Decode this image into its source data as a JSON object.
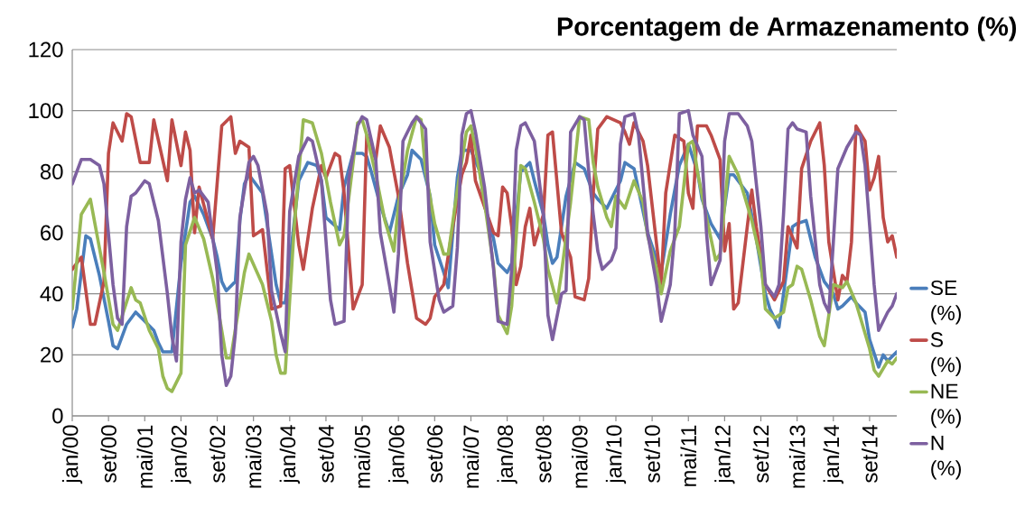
{
  "chart_data": {
    "type": "line",
    "title": "Porcentagem de Armazenamento (%)",
    "xlim": [
      "2000-01",
      "2015-03"
    ],
    "xticks": [
      {
        "value": "2000-01",
        "label": "jan/00"
      },
      {
        "value": "2000-09",
        "label": "set/00"
      },
      {
        "value": "2001-05",
        "label": "mai/01"
      },
      {
        "value": "2002-01",
        "label": "jan/02"
      },
      {
        "value": "2002-09",
        "label": "set/02"
      },
      {
        "value": "2003-05",
        "label": "mai/03"
      },
      {
        "value": "2004-01",
        "label": "jan/04"
      },
      {
        "value": "2004-09",
        "label": "set/04"
      },
      {
        "value": "2005-05",
        "label": "mai/05"
      },
      {
        "value": "2006-01",
        "label": "jan/06"
      },
      {
        "value": "2006-09",
        "label": "set/06"
      },
      {
        "value": "2007-05",
        "label": "mai/07"
      },
      {
        "value": "2008-01",
        "label": "jan/08"
      },
      {
        "value": "2008-09",
        "label": "set/08"
      },
      {
        "value": "2009-05",
        "label": "mai/09"
      },
      {
        "value": "2010-01",
        "label": "jan/10"
      },
      {
        "value": "2010-09",
        "label": "set/10"
      },
      {
        "value": "2011-05",
        "label": "mai/11"
      },
      {
        "value": "2012-01",
        "label": "jan/12"
      },
      {
        "value": "2012-09",
        "label": "set/12"
      },
      {
        "value": "2013-05",
        "label": "mai/13"
      },
      {
        "value": "2014-01",
        "label": "jan/14"
      },
      {
        "value": "2014-09",
        "label": "set/14"
      }
    ],
    "ylim": [
      0,
      120
    ],
    "yticks": [
      0,
      20,
      40,
      60,
      80,
      100,
      120
    ],
    "grid": "y",
    "legend": "right",
    "series": [
      {
        "name": "SE (%)",
        "color": "#4a7ebb",
        "x": [
          "2000-01",
          "2000-02",
          "2000-04",
          "2000-05",
          "2000-07",
          "2000-09",
          "2000-10",
          "2000-11",
          "2001-01",
          "2001-03",
          "2001-05",
          "2001-07",
          "2001-08",
          "2001-09",
          "2001-11",
          "2002-01",
          "2002-03",
          "2002-04",
          "2002-06",
          "2002-08",
          "2002-09",
          "2002-10",
          "2002-11",
          "2003-01",
          "2003-02",
          "2003-03",
          "2003-04",
          "2003-07",
          "2003-08",
          "2003-10",
          "2003-11",
          "2003-12",
          "2004-03",
          "2004-05",
          "2004-07",
          "2004-08",
          "2004-09",
          "2004-12",
          "2005-01",
          "2005-03",
          "2005-05",
          "2005-06",
          "2005-07",
          "2005-09",
          "2005-11",
          "2006-01",
          "2006-03",
          "2006-04",
          "2006-06",
          "2006-08",
          "2006-09",
          "2006-11",
          "2006-12",
          "2007-02",
          "2007-03",
          "2007-05",
          "2007-07",
          "2007-08",
          "2007-10",
          "2007-11",
          "2008-01",
          "2008-02",
          "2008-04",
          "2008-06",
          "2008-07",
          "2008-09",
          "2008-10",
          "2008-11",
          "2008-12",
          "2009-02",
          "2009-04",
          "2009-06",
          "2009-08",
          "2009-09",
          "2009-11",
          "2009-12",
          "2010-02",
          "2010-03",
          "2010-05",
          "2010-06",
          "2010-08",
          "2010-11",
          "2011-01",
          "2011-03",
          "2011-05",
          "2011-07",
          "2011-08",
          "2011-10",
          "2011-12",
          "2012-02",
          "2012-03",
          "2012-06",
          "2012-08",
          "2012-10",
          "2012-11",
          "2013-01",
          "2013-02",
          "2013-04",
          "2013-05",
          "2013-07",
          "2013-09",
          "2013-11",
          "2014-01",
          "2014-02",
          "2014-03",
          "2014-05",
          "2014-06",
          "2014-08",
          "2014-09",
          "2014-11",
          "2014-12",
          "2015-01",
          "2015-03"
        ],
        "values": [
          29,
          35,
          59,
          58,
          46,
          31,
          23,
          22,
          30,
          34,
          31,
          28,
          24,
          21,
          21,
          50,
          70,
          72,
          66,
          58,
          52,
          44,
          41,
          44,
          64,
          76,
          79,
          73,
          63,
          43,
          37,
          37,
          77,
          83,
          82,
          77,
          65,
          61,
          75,
          86,
          86,
          85,
          80,
          69,
          60,
          72,
          79,
          87,
          84,
          72,
          56,
          47,
          42,
          78,
          87,
          87,
          80,
          69,
          58,
          50,
          47,
          50,
          80,
          83,
          77,
          66,
          56,
          50,
          52,
          72,
          83,
          81,
          73,
          71,
          68,
          71,
          77,
          83,
          81,
          74,
          60,
          47,
          66,
          82,
          89,
          80,
          71,
          63,
          58,
          79,
          79,
          73,
          58,
          40,
          35,
          29,
          40,
          62,
          63,
          64,
          52,
          44,
          40,
          35,
          36,
          39,
          37,
          34,
          25,
          16,
          20,
          18,
          21
        ]
      },
      {
        "name": "S (%)",
        "color": "#be4b48",
        "x": [
          "2000-01",
          "2000-03",
          "2000-05",
          "2000-06",
          "2000-08",
          "2000-09",
          "2000-10",
          "2000-12",
          "2001-01",
          "2001-02",
          "2001-04",
          "2001-06",
          "2001-07",
          "2001-10",
          "2001-11",
          "2002-01",
          "2002-02",
          "2002-03",
          "2002-04",
          "2002-05",
          "2002-08",
          "2002-10",
          "2002-12",
          "2003-01",
          "2003-02",
          "2003-04",
          "2003-05",
          "2003-07",
          "2003-09",
          "2003-11",
          "2003-12",
          "2004-01",
          "2004-03",
          "2004-04",
          "2004-06",
          "2004-08",
          "2004-09",
          "2004-11",
          "2004-12",
          "2005-01",
          "2005-03",
          "2005-05",
          "2005-06",
          "2005-08",
          "2005-09",
          "2005-11",
          "2006-01",
          "2006-03",
          "2006-05",
          "2006-07",
          "2006-08",
          "2006-09",
          "2006-11",
          "2007-01",
          "2007-03",
          "2007-04",
          "2007-05",
          "2007-06",
          "2007-10",
          "2007-11",
          "2007-12",
          "2008-01",
          "2008-02",
          "2008-03",
          "2008-04",
          "2008-05",
          "2008-06",
          "2008-07",
          "2008-09",
          "2008-10",
          "2008-11",
          "2009-01",
          "2009-03",
          "2009-04",
          "2009-06",
          "2009-07",
          "2009-08",
          "2009-09",
          "2009-11",
          "2010-02",
          "2010-03",
          "2010-04",
          "2010-05",
          "2010-07",
          "2010-08",
          "2010-11",
          "2010-12",
          "2011-02",
          "2011-04",
          "2011-05",
          "2011-06",
          "2011-07",
          "2011-09",
          "2011-10",
          "2011-12",
          "2012-01",
          "2012-02",
          "2012-03",
          "2012-04",
          "2012-06",
          "2012-07",
          "2012-08",
          "2012-10",
          "2012-12",
          "2013-02",
          "2013-03",
          "2013-05",
          "2013-06",
          "2013-08",
          "2013-10",
          "2013-11",
          "2013-12",
          "2014-02",
          "2014-03",
          "2014-04",
          "2014-05",
          "2014-06",
          "2014-08",
          "2014-09",
          "2014-10",
          "2014-11",
          "2014-12",
          "2015-01",
          "2015-02",
          "2015-03"
        ],
        "values": [
          48,
          52,
          30,
          30,
          44,
          86,
          96,
          90,
          99,
          98,
          83,
          83,
          97,
          77,
          97,
          82,
          93,
          87,
          60,
          75,
          58,
          95,
          98,
          86,
          90,
          88,
          59,
          61,
          35,
          36,
          81,
          82,
          56,
          48,
          68,
          82,
          78,
          86,
          85,
          73,
          35,
          43,
          92,
          84,
          95,
          88,
          72,
          50,
          32,
          30,
          32,
          39,
          43,
          62,
          79,
          83,
          92,
          77,
          60,
          59,
          75,
          73,
          62,
          43,
          49,
          62,
          68,
          56,
          66,
          92,
          93,
          60,
          52,
          39,
          38,
          45,
          73,
          94,
          98,
          96,
          93,
          89,
          96,
          90,
          82,
          43,
          73,
          92,
          90,
          73,
          68,
          95,
          95,
          92,
          84,
          54,
          63,
          35,
          37,
          62,
          74,
          62,
          43,
          38,
          44,
          62,
          55,
          81,
          90,
          96,
          82,
          57,
          38,
          46,
          44,
          57,
          95,
          90,
          74,
          78,
          85,
          65,
          57,
          59,
          52
        ]
      },
      {
        "name": "NE (%)",
        "color": "#98b954",
        "x": [
          "2000-01",
          "2000-03",
          "2000-05",
          "2000-06",
          "2000-08",
          "2000-10",
          "2000-11",
          "2001-02",
          "2001-03",
          "2001-04",
          "2001-06",
          "2001-08",
          "2001-09",
          "2001-10",
          "2001-11",
          "2002-01",
          "2002-02",
          "2002-04",
          "2002-06",
          "2002-08",
          "2002-10",
          "2002-11",
          "2002-12",
          "2003-03",
          "2003-04",
          "2003-07",
          "2003-09",
          "2003-10",
          "2003-11",
          "2003-12",
          "2004-02",
          "2004-04",
          "2004-06",
          "2004-08",
          "2004-10",
          "2004-12",
          "2005-01",
          "2005-03",
          "2005-04",
          "2005-05",
          "2005-06",
          "2005-08",
          "2005-10",
          "2005-12",
          "2006-01",
          "2006-03",
          "2006-05",
          "2006-06",
          "2006-07",
          "2006-09",
          "2006-11",
          "2006-12",
          "2007-02",
          "2007-04",
          "2007-05",
          "2007-06",
          "2007-08",
          "2007-10",
          "2007-11",
          "2008-01",
          "2008-02",
          "2008-04",
          "2008-05",
          "2008-07",
          "2008-09",
          "2008-10",
          "2008-12",
          "2009-01",
          "2009-03",
          "2009-05",
          "2009-07",
          "2009-08",
          "2009-09",
          "2009-11",
          "2009-12",
          "2010-01",
          "2010-03",
          "2010-05",
          "2010-07",
          "2010-08",
          "2010-10",
          "2010-11",
          "2011-01",
          "2011-03",
          "2011-05",
          "2011-06",
          "2011-07",
          "2011-09",
          "2011-11",
          "2011-12",
          "2012-02",
          "2012-04",
          "2012-07",
          "2012-09",
          "2012-10",
          "2012-12",
          "2013-02",
          "2013-03",
          "2013-04",
          "2013-05",
          "2013-06",
          "2013-08",
          "2013-10",
          "2013-11",
          "2014-01",
          "2014-03",
          "2014-04",
          "2014-06",
          "2014-09",
          "2014-10",
          "2014-11",
          "2015-01",
          "2015-02",
          "2015-03"
        ],
        "values": [
          35,
          66,
          71,
          63,
          47,
          30,
          28,
          42,
          38,
          37,
          28,
          22,
          13,
          9,
          8,
          14,
          56,
          65,
          58,
          45,
          28,
          19,
          19,
          47,
          53,
          43,
          31,
          20,
          14,
          14,
          62,
          97,
          96,
          86,
          70,
          56,
          59,
          83,
          96,
          97,
          92,
          79,
          64,
          54,
          69,
          87,
          98,
          97,
          80,
          63,
          53,
          53,
          74,
          93,
          95,
          88,
          70,
          49,
          33,
          27,
          36,
          82,
          81,
          70,
          58,
          48,
          37,
          47,
          70,
          98,
          97,
          83,
          75,
          65,
          62,
          72,
          68,
          77,
          70,
          59,
          48,
          40,
          54,
          62,
          89,
          90,
          80,
          65,
          51,
          53,
          85,
          79,
          64,
          51,
          35,
          32,
          34,
          42,
          43,
          49,
          48,
          38,
          26,
          23,
          43,
          42,
          44,
          37,
          22,
          15,
          13,
          18,
          17,
          19
        ]
      },
      {
        "name": "N (%)",
        "color": "#7d60a0",
        "x": [
          "2000-01",
          "2000-03",
          "2000-05",
          "2000-07",
          "2000-08",
          "2000-10",
          "2000-11",
          "2000-12",
          "2001-01",
          "2001-02",
          "2001-03",
          "2001-05",
          "2001-06",
          "2001-08",
          "2001-10",
          "2001-11",
          "2001-12",
          "2002-01",
          "2002-02",
          "2002-03",
          "2002-04",
          "2002-05",
          "2002-07",
          "2002-09",
          "2002-10",
          "2002-11",
          "2002-12",
          "2003-01",
          "2003-02",
          "2003-04",
          "2003-05",
          "2003-06",
          "2003-08",
          "2003-09",
          "2003-11",
          "2003-12",
          "2004-01",
          "2004-03",
          "2004-05",
          "2004-06",
          "2004-08",
          "2004-10",
          "2004-11",
          "2005-01",
          "2005-02",
          "2005-04",
          "2005-05",
          "2005-06",
          "2005-08",
          "2005-09",
          "2005-11",
          "2005-12",
          "2006-01",
          "2006-02",
          "2006-04",
          "2006-05",
          "2006-07",
          "2006-08",
          "2006-10",
          "2006-11",
          "2007-01",
          "2007-02",
          "2007-03",
          "2007-04",
          "2007-05",
          "2007-06",
          "2007-08",
          "2007-10",
          "2007-11",
          "2008-01",
          "2008-02",
          "2008-03",
          "2008-04",
          "2008-05",
          "2008-07",
          "2008-09",
          "2008-10",
          "2008-11",
          "2009-01",
          "2009-02",
          "2009-03",
          "2009-05",
          "2009-06",
          "2009-07",
          "2009-08",
          "2009-09",
          "2009-10",
          "2009-12",
          "2010-01",
          "2010-02",
          "2010-03",
          "2010-05",
          "2010-06",
          "2010-08",
          "2010-10",
          "2010-11",
          "2011-01",
          "2011-02",
          "2011-03",
          "2011-05",
          "2011-06",
          "2011-08",
          "2011-09",
          "2011-10",
          "2011-12",
          "2012-01",
          "2012-02",
          "2012-04",
          "2012-06",
          "2012-07",
          "2012-09",
          "2012-10",
          "2012-12",
          "2013-01",
          "2013-02",
          "2013-03",
          "2013-04",
          "2013-05",
          "2013-07",
          "2013-08",
          "2013-10",
          "2013-11",
          "2013-12",
          "2014-01",
          "2014-02",
          "2014-04",
          "2014-06",
          "2014-07",
          "2014-08",
          "2014-10",
          "2014-11",
          "2015-01",
          "2015-02",
          "2015-03"
        ],
        "values": [
          76,
          84,
          84,
          82,
          76,
          43,
          32,
          30,
          62,
          72,
          73,
          77,
          76,
          64,
          40,
          26,
          18,
          57,
          71,
          78,
          73,
          74,
          70,
          47,
          20,
          10,
          13,
          27,
          65,
          83,
          85,
          82,
          66,
          41,
          27,
          21,
          67,
          85,
          91,
          90,
          77,
          38,
          30,
          31,
          77,
          95,
          98,
          97,
          84,
          60,
          43,
          34,
          53,
          90,
          96,
          98,
          94,
          57,
          38,
          34,
          36,
          55,
          92,
          99,
          100,
          93,
          75,
          48,
          31,
          30,
          48,
          87,
          95,
          96,
          90,
          66,
          33,
          25,
          40,
          41,
          93,
          98,
          97,
          80,
          66,
          54,
          48,
          51,
          55,
          89,
          98,
          99,
          92,
          60,
          43,
          31,
          43,
          60,
          99,
          100,
          92,
          85,
          60,
          43,
          51,
          90,
          99,
          99,
          95,
          90,
          62,
          43,
          39,
          43,
          66,
          94,
          96,
          94,
          93,
          72,
          43,
          37,
          34,
          57,
          81,
          88,
          93,
          92,
          82,
          43,
          28,
          34,
          36,
          40
        ]
      }
    ]
  }
}
